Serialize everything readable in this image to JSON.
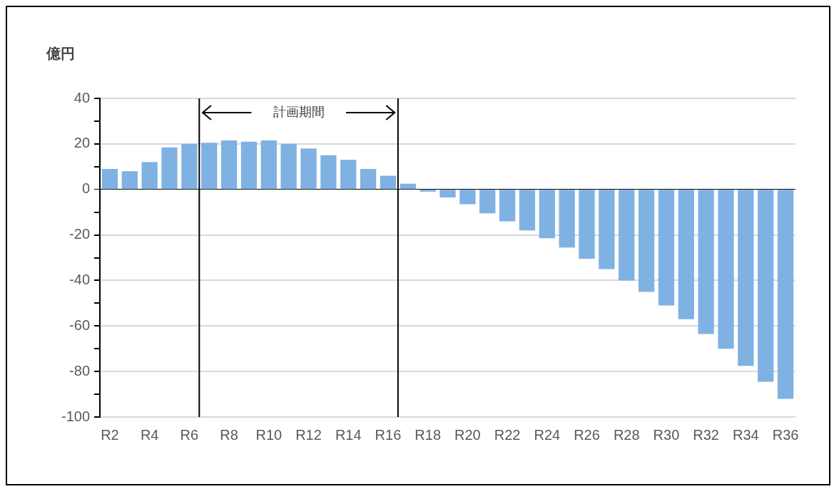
{
  "chart_data": {
    "type": "bar",
    "ylabel": "億円",
    "categories": [
      "R2",
      null,
      "R4",
      null,
      "R6",
      null,
      "R8",
      null,
      "R10",
      null,
      "R12",
      null,
      "R14",
      null,
      "R16",
      null,
      "R18",
      null,
      "R20",
      null,
      "R22",
      null,
      "R24",
      null,
      "R26",
      null,
      "R28",
      null,
      "R30",
      null,
      "R32",
      null,
      "R34",
      null,
      "R36"
    ],
    "values": [
      9,
      8,
      12,
      18.5,
      20,
      20.5,
      21.5,
      21,
      21.5,
      20,
      18,
      15,
      13,
      9,
      6,
      2.5,
      -1,
      -3.5,
      -6.5,
      -10.5,
      -14,
      -18,
      -21.5,
      -25.5,
      -30.5,
      -35,
      -40,
      -45,
      -51,
      -57,
      -63.5,
      -70,
      -77.5,
      -84.5,
      -92
    ],
    "color": "#7fb1e3",
    "ylim": [
      -100,
      40
    ],
    "yticks": [
      -100,
      {
        "value": -90,
        "label": null
      },
      -80,
      {
        "value": -70,
        "label": null
      },
      -60,
      {
        "value": -50,
        "label": null
      },
      -40,
      {
        "value": -30,
        "label": null
      },
      -20,
      {
        "value": -10,
        "label": null
      },
      0,
      {
        "value": 10,
        "label": null
      },
      20,
      {
        "value": 30,
        "label": null
      },
      40
    ],
    "annotations": [
      "計画期間"
    ],
    "grid": "y",
    "legend": false
  }
}
